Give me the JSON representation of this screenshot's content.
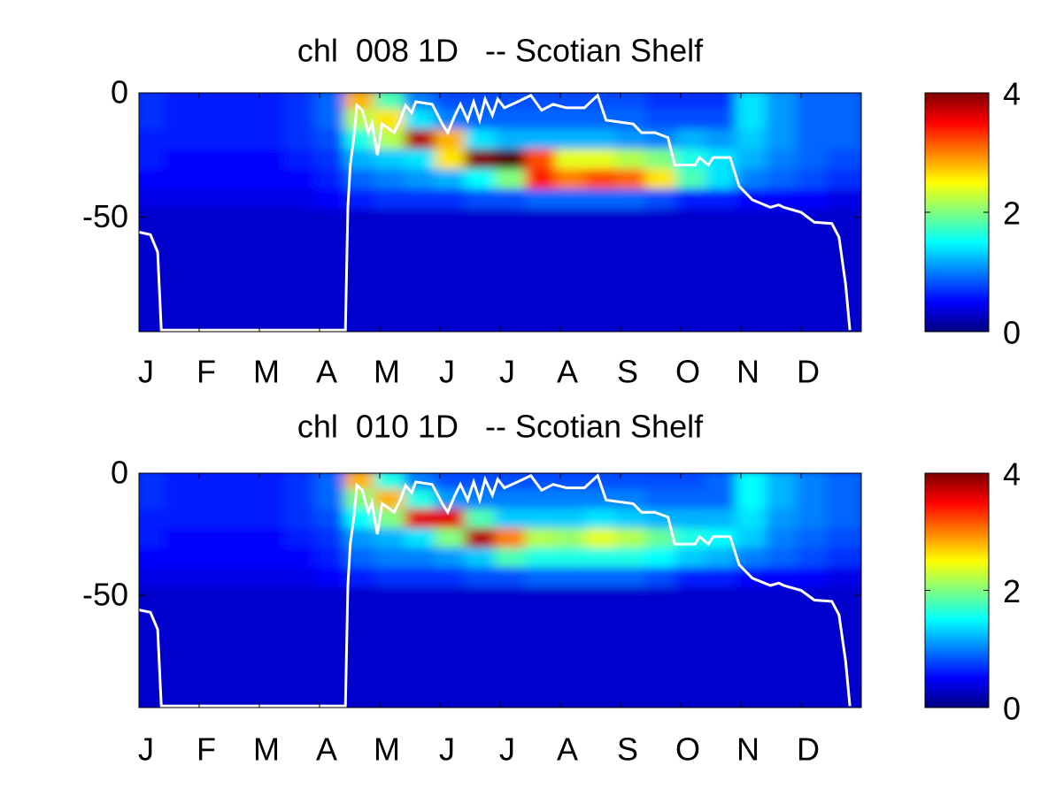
{
  "chart_data": [
    {
      "type": "heatmap",
      "title": "chl  008 1D   -- Scotian Shelf",
      "xlim": [
        0,
        12
      ],
      "xticks": [
        {
          "value": 0,
          "label": "J"
        },
        {
          "value": 1,
          "label": "F"
        },
        {
          "value": 2,
          "label": "M"
        },
        {
          "value": 3,
          "label": "A"
        },
        {
          "value": 4,
          "label": "M"
        },
        {
          "value": 5,
          "label": "J"
        },
        {
          "value": 6,
          "label": "J"
        },
        {
          "value": 7,
          "label": "A"
        },
        {
          "value": 8,
          "label": "S"
        },
        {
          "value": 9,
          "label": "O"
        },
        {
          "value": 10,
          "label": "N"
        },
        {
          "value": 11,
          "label": "D"
        }
      ],
      "ylim": [
        -96,
        0
      ],
      "yticks": [
        -50,
        0
      ],
      "colorbar": {
        "colormap": "jet",
        "clim": [
          0,
          4
        ],
        "ticks": [
          0,
          2,
          4
        ]
      },
      "heatmap": {
        "x": [
          0.25,
          0.75,
          1.25,
          1.75,
          2.25,
          2.75,
          3.25,
          3.75,
          4.25,
          4.75,
          5.25,
          5.75,
          6.25,
          6.75,
          7.25,
          7.75,
          8.25,
          8.75,
          9.25,
          9.75,
          10.25,
          10.75,
          11.25,
          11.75
        ],
        "y": [
          -4,
          -12,
          -20,
          -28,
          -36,
          -44,
          -52,
          -60,
          -68,
          -76,
          -84,
          -92
        ],
        "z": [
          [
            0.7,
            0.6,
            0.6,
            0.6,
            0.6,
            0.7,
            0.9,
            2.8,
            1.8,
            1.0,
            0.8,
            0.8,
            0.8,
            0.8,
            0.8,
            0.8,
            0.8,
            0.7,
            0.7,
            0.7,
            1.4,
            1.1,
            0.9,
            0.9
          ],
          [
            0.7,
            0.6,
            0.6,
            0.6,
            0.6,
            0.7,
            0.9,
            2.2,
            2.6,
            1.4,
            1.0,
            0.9,
            0.9,
            0.9,
            0.9,
            0.9,
            0.9,
            0.8,
            0.8,
            0.8,
            1.4,
            1.1,
            0.9,
            0.9
          ],
          [
            0.6,
            0.6,
            0.6,
            0.6,
            0.6,
            0.7,
            0.8,
            1.6,
            2.2,
            3.8,
            2.8,
            1.4,
            1.2,
            1.2,
            1.2,
            1.2,
            1.1,
            1.0,
            1.2,
            1.1,
            1.3,
            1.1,
            0.9,
            0.9
          ],
          [
            0.6,
            0.5,
            0.5,
            0.5,
            0.5,
            0.6,
            0.7,
            1.2,
            1.3,
            1.4,
            2.6,
            4.0,
            4.2,
            3.2,
            2.4,
            2.4,
            2.2,
            2.0,
            1.6,
            1.4,
            1.2,
            1.0,
            0.9,
            0.8
          ],
          [
            0.5,
            0.5,
            0.5,
            0.5,
            0.5,
            0.5,
            0.6,
            0.9,
            1.0,
            1.1,
            1.2,
            1.5,
            2.0,
            3.4,
            3.0,
            3.2,
            3.1,
            2.6,
            1.8,
            1.4,
            1.0,
            0.9,
            0.8,
            0.7
          ],
          [
            0.4,
            0.4,
            0.4,
            0.4,
            0.4,
            0.4,
            0.5,
            0.6,
            0.7,
            0.7,
            0.7,
            0.8,
            0.8,
            0.9,
            0.9,
            0.9,
            0.9,
            0.8,
            0.6,
            0.6,
            0.5,
            0.5,
            0.5,
            0.4
          ],
          [
            0.3,
            0.3,
            0.3,
            0.3,
            0.3,
            0.3,
            0.3,
            0.3,
            0.3,
            0.3,
            0.3,
            0.3,
            0.3,
            0.3,
            0.3,
            0.3,
            0.3,
            0.3,
            0.3,
            0.3,
            0.3,
            0.3,
            0.3,
            0.3
          ],
          [
            0.3,
            0.3,
            0.3,
            0.3,
            0.3,
            0.3,
            0.3,
            0.3,
            0.3,
            0.3,
            0.3,
            0.3,
            0.3,
            0.3,
            0.3,
            0.3,
            0.3,
            0.3,
            0.3,
            0.3,
            0.3,
            0.3,
            0.3,
            0.3
          ],
          [
            0.3,
            0.3,
            0.3,
            0.3,
            0.3,
            0.3,
            0.3,
            0.3,
            0.3,
            0.3,
            0.3,
            0.3,
            0.3,
            0.3,
            0.3,
            0.3,
            0.3,
            0.3,
            0.3,
            0.3,
            0.3,
            0.3,
            0.3,
            0.3
          ],
          [
            0.3,
            0.3,
            0.3,
            0.3,
            0.3,
            0.3,
            0.3,
            0.3,
            0.3,
            0.3,
            0.3,
            0.3,
            0.3,
            0.3,
            0.3,
            0.3,
            0.3,
            0.3,
            0.3,
            0.3,
            0.3,
            0.3,
            0.3,
            0.3
          ],
          [
            0.3,
            0.3,
            0.3,
            0.3,
            0.3,
            0.3,
            0.3,
            0.3,
            0.3,
            0.3,
            0.3,
            0.3,
            0.3,
            0.3,
            0.3,
            0.3,
            0.3,
            0.3,
            0.3,
            0.3,
            0.3,
            0.3,
            0.3,
            0.3
          ],
          [
            0.3,
            0.3,
            0.3,
            0.3,
            0.3,
            0.3,
            0.3,
            0.3,
            0.3,
            0.3,
            0.3,
            0.3,
            0.3,
            0.3,
            0.3,
            0.3,
            0.3,
            0.3,
            0.3,
            0.3,
            0.3,
            0.3,
            0.3,
            0.3
          ]
        ]
      },
      "series": [
        {
          "color": "#ffffff",
          "x": [
            0,
            0.19,
            0.31,
            0.37,
            3.43,
            3.47,
            3.51,
            3.57,
            3.62,
            3.71,
            3.81,
            3.87,
            3.96,
            4.04,
            4.13,
            4.24,
            4.34,
            4.43,
            4.53,
            4.6,
            4.87,
            5.04,
            5.13,
            5.25,
            5.34,
            5.46,
            5.56,
            5.66,
            5.75,
            5.87,
            5.96,
            6.07,
            6.29,
            6.51,
            6.69,
            6.88,
            7.1,
            7.4,
            7.62,
            7.76,
            8.21,
            8.35,
            8.57,
            8.79,
            8.9,
            9.24,
            9.31,
            9.46,
            9.54,
            9.82,
            9.97,
            10.19,
            10.49,
            10.63,
            10.71,
            11,
            11.22,
            11.51,
            11.63,
            11.74,
            11.81
          ],
          "values": [
            -56,
            -57,
            -64,
            -95.4,
            -95.4,
            -46,
            -29,
            -18,
            -5,
            -7,
            -16,
            -12,
            -25,
            -12.5,
            -14,
            -16,
            -11,
            -5,
            -8,
            -3.6,
            -4.6,
            -12.5,
            -16,
            -9,
            -4.6,
            -11,
            -3.6,
            -11,
            -2.5,
            -9,
            -2.5,
            -6,
            -3.6,
            -1,
            -7,
            -4.6,
            -6,
            -6,
            -1,
            -11,
            -12.5,
            -16,
            -16,
            -18,
            -29,
            -29,
            -26,
            -29,
            -26,
            -26,
            -37.5,
            -43,
            -46,
            -45,
            -46,
            -48,
            -52,
            -52.5,
            -58,
            -77,
            -95.4
          ]
        }
      ]
    },
    {
      "type": "heatmap",
      "title": "chl  010 1D   -- Scotian Shelf",
      "xlim": [
        0,
        12
      ],
      "xticks": [
        {
          "value": 0,
          "label": "J"
        },
        {
          "value": 1,
          "label": "F"
        },
        {
          "value": 2,
          "label": "M"
        },
        {
          "value": 3,
          "label": "A"
        },
        {
          "value": 4,
          "label": "M"
        },
        {
          "value": 5,
          "label": "J"
        },
        {
          "value": 6,
          "label": "J"
        },
        {
          "value": 7,
          "label": "A"
        },
        {
          "value": 8,
          "label": "S"
        },
        {
          "value": 9,
          "label": "O"
        },
        {
          "value": 10,
          "label": "N"
        },
        {
          "value": 11,
          "label": "D"
        }
      ],
      "ylim": [
        -96,
        0
      ],
      "yticks": [
        -50,
        0
      ],
      "colorbar": {
        "colormap": "jet",
        "clim": [
          0,
          4
        ],
        "ticks": [
          0,
          2,
          4
        ]
      },
      "heatmap": {
        "x": [
          0.25,
          0.75,
          1.25,
          1.75,
          2.25,
          2.75,
          3.25,
          3.75,
          4.25,
          4.75,
          5.25,
          5.75,
          6.25,
          6.75,
          7.25,
          7.75,
          8.25,
          8.75,
          9.25,
          9.75,
          10.25,
          10.75,
          11.25,
          11.75
        ],
        "y": [
          -4,
          -12,
          -20,
          -28,
          -36,
          -44,
          -52,
          -60,
          -68,
          -76,
          -84,
          -92
        ],
        "z": [
          [
            0.7,
            0.6,
            0.6,
            0.6,
            0.6,
            0.7,
            0.9,
            2.8,
            1.6,
            1.0,
            0.8,
            0.8,
            0.8,
            0.8,
            0.8,
            0.8,
            0.8,
            0.8,
            0.8,
            0.9,
            1.5,
            1.2,
            1.0,
            0.9
          ],
          [
            0.7,
            0.6,
            0.6,
            0.6,
            0.6,
            0.7,
            0.9,
            2.0,
            2.8,
            1.6,
            1.1,
            1.0,
            1.0,
            1.0,
            1.0,
            1.0,
            1.0,
            0.9,
            0.9,
            0.9,
            1.5,
            1.2,
            1.0,
            0.9
          ],
          [
            0.6,
            0.6,
            0.6,
            0.6,
            0.6,
            0.7,
            0.8,
            1.5,
            2.0,
            3.6,
            3.6,
            1.8,
            1.3,
            1.3,
            1.3,
            1.4,
            1.3,
            1.2,
            1.2,
            1.2,
            1.4,
            1.1,
            1.0,
            0.9
          ],
          [
            0.6,
            0.5,
            0.5,
            0.5,
            0.5,
            0.6,
            0.7,
            1.1,
            1.2,
            1.4,
            2.0,
            3.8,
            3.0,
            2.2,
            2.1,
            2.4,
            2.2,
            1.9,
            1.6,
            1.5,
            1.3,
            1.0,
            0.9,
            0.8
          ],
          [
            0.5,
            0.5,
            0.5,
            0.5,
            0.5,
            0.5,
            0.6,
            0.9,
            1.0,
            1.0,
            1.1,
            1.3,
            1.8,
            1.6,
            1.6,
            1.6,
            1.6,
            1.5,
            1.3,
            1.2,
            1.0,
            0.9,
            0.8,
            0.7
          ],
          [
            0.4,
            0.4,
            0.4,
            0.4,
            0.4,
            0.4,
            0.5,
            0.6,
            0.7,
            0.7,
            0.7,
            0.8,
            0.8,
            0.9,
            0.9,
            0.9,
            0.9,
            0.8,
            0.6,
            0.6,
            0.5,
            0.5,
            0.5,
            0.4
          ],
          [
            0.3,
            0.3,
            0.3,
            0.3,
            0.3,
            0.3,
            0.3,
            0.3,
            0.3,
            0.3,
            0.3,
            0.3,
            0.3,
            0.3,
            0.3,
            0.3,
            0.3,
            0.3,
            0.3,
            0.3,
            0.3,
            0.3,
            0.3,
            0.3
          ],
          [
            0.3,
            0.3,
            0.3,
            0.3,
            0.3,
            0.3,
            0.3,
            0.3,
            0.3,
            0.3,
            0.3,
            0.3,
            0.3,
            0.3,
            0.3,
            0.3,
            0.3,
            0.3,
            0.3,
            0.3,
            0.3,
            0.3,
            0.3,
            0.3
          ],
          [
            0.3,
            0.3,
            0.3,
            0.3,
            0.3,
            0.3,
            0.3,
            0.3,
            0.3,
            0.3,
            0.3,
            0.3,
            0.3,
            0.3,
            0.3,
            0.3,
            0.3,
            0.3,
            0.3,
            0.3,
            0.3,
            0.3,
            0.3,
            0.3
          ],
          [
            0.3,
            0.3,
            0.3,
            0.3,
            0.3,
            0.3,
            0.3,
            0.3,
            0.3,
            0.3,
            0.3,
            0.3,
            0.3,
            0.3,
            0.3,
            0.3,
            0.3,
            0.3,
            0.3,
            0.3,
            0.3,
            0.3,
            0.3,
            0.3
          ],
          [
            0.3,
            0.3,
            0.3,
            0.3,
            0.3,
            0.3,
            0.3,
            0.3,
            0.3,
            0.3,
            0.3,
            0.3,
            0.3,
            0.3,
            0.3,
            0.3,
            0.3,
            0.3,
            0.3,
            0.3,
            0.3,
            0.3,
            0.3,
            0.3
          ],
          [
            0.3,
            0.3,
            0.3,
            0.3,
            0.3,
            0.3,
            0.3,
            0.3,
            0.3,
            0.3,
            0.3,
            0.3,
            0.3,
            0.3,
            0.3,
            0.3,
            0.3,
            0.3,
            0.3,
            0.3,
            0.3,
            0.3,
            0.3,
            0.3
          ]
        ]
      },
      "series": [
        {
          "color": "#ffffff",
          "x": [
            0,
            0.19,
            0.31,
            0.37,
            3.43,
            3.47,
            3.51,
            3.57,
            3.62,
            3.71,
            3.81,
            3.87,
            3.96,
            4.04,
            4.13,
            4.24,
            4.34,
            4.43,
            4.53,
            4.6,
            4.87,
            5.04,
            5.13,
            5.25,
            5.34,
            5.46,
            5.56,
            5.66,
            5.75,
            5.87,
            5.96,
            6.07,
            6.29,
            6.51,
            6.69,
            6.88,
            7.1,
            7.4,
            7.62,
            7.76,
            8.21,
            8.35,
            8.57,
            8.79,
            8.9,
            9.24,
            9.31,
            9.46,
            9.54,
            9.82,
            9.97,
            10.19,
            10.49,
            10.63,
            10.71,
            11,
            11.22,
            11.51,
            11.63,
            11.74,
            11.81
          ],
          "values": [
            -56,
            -57,
            -64,
            -95.4,
            -95.4,
            -46,
            -29,
            -18,
            -5,
            -7,
            -16,
            -12,
            -25,
            -12.5,
            -14,
            -16,
            -11,
            -5,
            -8,
            -3.6,
            -4.6,
            -12.5,
            -16,
            -9,
            -4.6,
            -11,
            -3.6,
            -11,
            -2.5,
            -9,
            -2.5,
            -6,
            -3.6,
            -1,
            -7,
            -4.6,
            -6,
            -6,
            -1,
            -11,
            -12.5,
            -16,
            -16,
            -18,
            -29,
            -29,
            -26,
            -29,
            -26,
            -26,
            -37.5,
            -43,
            -46,
            -45,
            -46,
            -48,
            -52,
            -52.5,
            -58,
            -77,
            -95.4
          ]
        }
      ]
    }
  ]
}
